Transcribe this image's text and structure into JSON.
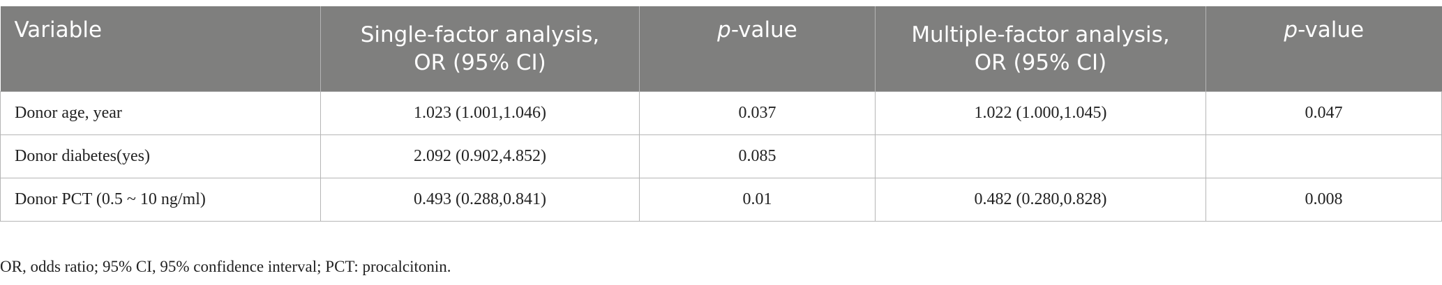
{
  "table": {
    "header": {
      "variable": "Variable",
      "single": [
        "Single-factor analysis,",
        "OR (95% CI)"
      ],
      "p1": {
        "italic": "p",
        "rest": "-value"
      },
      "multiple": [
        "Multiple-factor analysis,",
        "OR (95% CI)"
      ],
      "p2": {
        "italic": "p",
        "rest": "-value"
      }
    },
    "rows": [
      [
        "Donor age, year",
        "1.023 (1.001,1.046)",
        "0.037",
        "1.022 (1.000,1.045)",
        "0.047"
      ],
      [
        "Donor diabetes(yes)",
        "2.092 (0.902,4.852)",
        "0.085"
      ],
      [
        "Donor PCT (0.5 ~ 10 ng/ml)",
        "0.493 (0.288,0.841)",
        "0.01",
        "0.482 (0.280,0.828)",
        "0.008"
      ]
    ]
  },
  "footnote": "OR, odds ratio; 95% CI, 95% confidence interval; PCT: procalcitonin."
}
